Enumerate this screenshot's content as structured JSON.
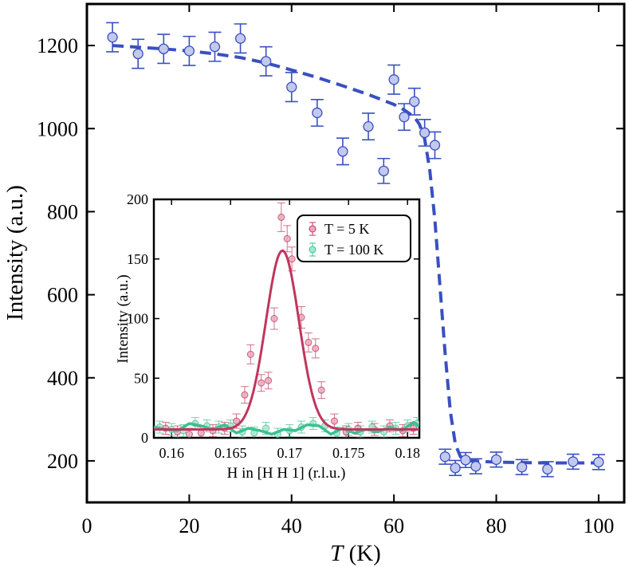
{
  "chart_data": [
    {
      "type": "scatter",
      "xlabel_italic": "T",
      "xlabel_unit": " (K)",
      "ylabel": "Intensity (a.u.)",
      "xlim": [
        0,
        105
      ],
      "ylim": [
        100,
        1300
      ],
      "xticks": [
        "0",
        "20",
        "40",
        "60",
        "80",
        "100"
      ],
      "yticks": [
        "200",
        "400",
        "600",
        "800",
        "1000",
        "1200"
      ],
      "series": [
        {
          "marker": "circle",
          "color": "#3a50c0",
          "fill": "#c3c9ee",
          "points": [
            {
              "x": 5,
              "y": 1220,
              "err": 35
            },
            {
              "x": 10,
              "y": 1180,
              "err": 35
            },
            {
              "x": 15,
              "y": 1192,
              "err": 35
            },
            {
              "x": 20,
              "y": 1187,
              "err": 35
            },
            {
              "x": 25,
              "y": 1197,
              "err": 35
            },
            {
              "x": 30,
              "y": 1217,
              "err": 35
            },
            {
              "x": 35,
              "y": 1162,
              "err": 35
            },
            {
              "x": 40,
              "y": 1100,
              "err": 35
            },
            {
              "x": 45,
              "y": 1038,
              "err": 32
            },
            {
              "x": 50,
              "y": 945,
              "err": 32
            },
            {
              "x": 55,
              "y": 1005,
              "err": 32
            },
            {
              "x": 58,
              "y": 898,
              "err": 30
            },
            {
              "x": 60,
              "y": 1118,
              "err": 35
            },
            {
              "x": 62,
              "y": 1028,
              "err": 32
            },
            {
              "x": 64,
              "y": 1065,
              "err": 32
            },
            {
              "x": 66,
              "y": 990,
              "err": 32
            },
            {
              "x": 68,
              "y": 960,
              "err": 32
            },
            {
              "x": 70,
              "y": 210,
              "err": 18
            },
            {
              "x": 72,
              "y": 183,
              "err": 18
            },
            {
              "x": 74,
              "y": 202,
              "err": 18
            },
            {
              "x": 76,
              "y": 187,
              "err": 18
            },
            {
              "x": 80,
              "y": 203,
              "err": 18
            },
            {
              "x": 85,
              "y": 185,
              "err": 18
            },
            {
              "x": 90,
              "y": 180,
              "err": 18
            },
            {
              "x": 95,
              "y": 198,
              "err": 18
            },
            {
              "x": 100,
              "y": 197,
              "err": 18
            }
          ]
        }
      ],
      "fit_line": {
        "style": "dashed",
        "color": "#3a50c0",
        "points": [
          [
            5,
            1200
          ],
          [
            10,
            1196
          ],
          [
            15,
            1192
          ],
          [
            20,
            1187
          ],
          [
            25,
            1180
          ],
          [
            30,
            1171
          ],
          [
            35,
            1158
          ],
          [
            40,
            1141
          ],
          [
            45,
            1123
          ],
          [
            50,
            1103
          ],
          [
            55,
            1082
          ],
          [
            60,
            1058
          ],
          [
            62,
            1045
          ],
          [
            64,
            1028
          ],
          [
            65,
            1010
          ],
          [
            66,
            975
          ],
          [
            67,
            900
          ],
          [
            68,
            780
          ],
          [
            69,
            620
          ],
          [
            70,
            460
          ],
          [
            71,
            320
          ],
          [
            72,
            240
          ],
          [
            73,
            210
          ],
          [
            75,
            200
          ],
          [
            80,
            197
          ],
          [
            90,
            195
          ],
          [
            100,
            195
          ]
        ]
      }
    },
    {
      "type": "scatter",
      "xlabel": "H in [H H 1] (r.l.u.)",
      "ylabel": "Intensity (a.u.)",
      "xlim": [
        0.1585,
        0.181
      ],
      "ylim": [
        0,
        200
      ],
      "xticks": [
        "0.16",
        "0.165",
        "0.17",
        "0.175",
        "0.18"
      ],
      "yticks": [
        "0",
        "50",
        "100",
        "150",
        "200"
      ],
      "legend_position": "top-right",
      "series": [
        {
          "name": "T = 5 K",
          "color": "#c0365e",
          "fill": "#e8a9ba",
          "points": [
            {
              "x": 0.1595,
              "y": 8,
              "err": 5
            },
            {
              "x": 0.1605,
              "y": 5,
              "err": 5
            },
            {
              "x": 0.1615,
              "y": 3,
              "err": 5
            },
            {
              "x": 0.1625,
              "y": 4,
              "err": 5
            },
            {
              "x": 0.1635,
              "y": 6,
              "err": 5
            },
            {
              "x": 0.1645,
              "y": 8,
              "err": 5
            },
            {
              "x": 0.1655,
              "y": 14,
              "err": 6
            },
            {
              "x": 0.1662,
              "y": 36,
              "err": 7
            },
            {
              "x": 0.1667,
              "y": 70,
              "err": 8
            },
            {
              "x": 0.1676,
              "y": 46,
              "err": 7
            },
            {
              "x": 0.1682,
              "y": 48,
              "err": 7
            },
            {
              "x": 0.1687,
              "y": 100,
              "err": 9
            },
            {
              "x": 0.1693,
              "y": 185,
              "err": 12
            },
            {
              "x": 0.1698,
              "y": 167,
              "err": 11
            },
            {
              "x": 0.1702,
              "y": 150,
              "err": 10
            },
            {
              "x": 0.171,
              "y": 101,
              "err": 9
            },
            {
              "x": 0.1716,
              "y": 80,
              "err": 8
            },
            {
              "x": 0.1722,
              "y": 75,
              "err": 8
            },
            {
              "x": 0.1727,
              "y": 40,
              "err": 7
            },
            {
              "x": 0.1738,
              "y": 14,
              "err": 6
            },
            {
              "x": 0.1748,
              "y": 5,
              "err": 5
            },
            {
              "x": 0.1758,
              "y": 8,
              "err": 5
            },
            {
              "x": 0.1772,
              "y": 7,
              "err": 5
            },
            {
              "x": 0.1785,
              "y": 10,
              "err": 5
            },
            {
              "x": 0.1796,
              "y": 6,
              "err": 5
            },
            {
              "x": 0.1805,
              "y": 8,
              "err": 5
            }
          ],
          "fit": {
            "amplitude": 150,
            "center": 0.1694,
            "sigma": 0.0014,
            "offset": 7
          }
        },
        {
          "name": "T = 100 K",
          "color": "#3cc08f",
          "fill": "#a7e6cc",
          "points": [
            {
              "x": 0.159,
              "y": 9,
              "err": 5
            },
            {
              "x": 0.16,
              "y": 7,
              "err": 5
            },
            {
              "x": 0.161,
              "y": 6,
              "err": 5
            },
            {
              "x": 0.162,
              "y": 12,
              "err": 5
            },
            {
              "x": 0.163,
              "y": 10,
              "err": 5
            },
            {
              "x": 0.164,
              "y": 9,
              "err": 5
            },
            {
              "x": 0.165,
              "y": 10,
              "err": 5
            },
            {
              "x": 0.166,
              "y": 5,
              "err": 5
            },
            {
              "x": 0.167,
              "y": 4,
              "err": 5
            },
            {
              "x": 0.168,
              "y": 8,
              "err": 5
            },
            {
              "x": 0.169,
              "y": 3,
              "err": 5
            },
            {
              "x": 0.17,
              "y": 6,
              "err": 5
            },
            {
              "x": 0.171,
              "y": 9,
              "err": 5
            },
            {
              "x": 0.172,
              "y": 12,
              "err": 5
            },
            {
              "x": 0.173,
              "y": 10,
              "err": 5
            },
            {
              "x": 0.174,
              "y": 4,
              "err": 5
            },
            {
              "x": 0.175,
              "y": 7,
              "err": 5
            },
            {
              "x": 0.176,
              "y": 5,
              "err": 5
            },
            {
              "x": 0.177,
              "y": 9,
              "err": 5
            },
            {
              "x": 0.178,
              "y": 5,
              "err": 5
            },
            {
              "x": 0.179,
              "y": 8,
              "err": 5
            },
            {
              "x": 0.18,
              "y": 10,
              "err": 5
            },
            {
              "x": 0.1808,
              "y": 12,
              "err": 5
            }
          ],
          "line": [
            [
              0.1585,
              9
            ],
            [
              0.1595,
              7
            ],
            [
              0.1605,
              6
            ],
            [
              0.1615,
              12
            ],
            [
              0.1625,
              10
            ],
            [
              0.1635,
              7
            ],
            [
              0.1645,
              11
            ],
            [
              0.1655,
              4
            ],
            [
              0.1665,
              8
            ],
            [
              0.1675,
              6
            ],
            [
              0.1685,
              3
            ],
            [
              0.1695,
              7
            ],
            [
              0.1705,
              6
            ],
            [
              0.1715,
              11
            ],
            [
              0.1725,
              10
            ],
            [
              0.1735,
              3
            ],
            [
              0.1745,
              8
            ],
            [
              0.1755,
              4
            ],
            [
              0.1765,
              7
            ],
            [
              0.1775,
              5
            ],
            [
              0.1785,
              9
            ],
            [
              0.1795,
              6
            ],
            [
              0.1805,
              13
            ],
            [
              0.181,
              10
            ]
          ]
        }
      ]
    }
  ]
}
